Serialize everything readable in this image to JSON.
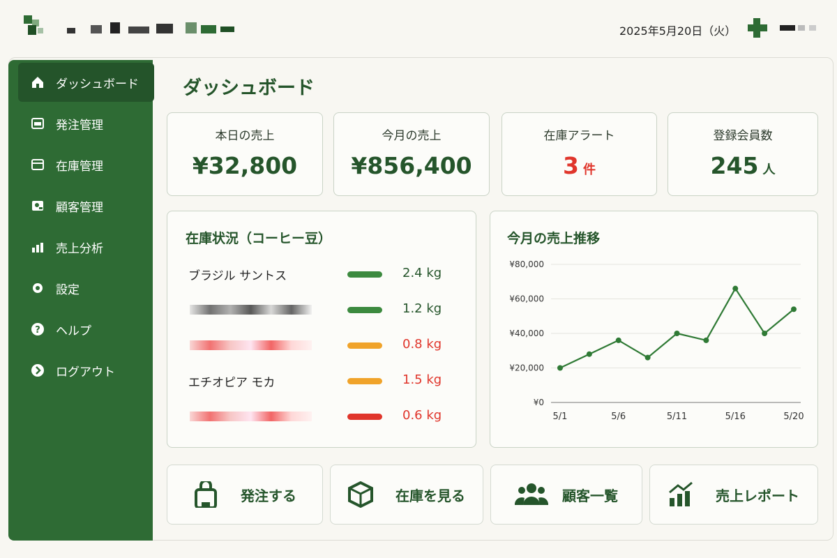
{
  "header": {
    "date": "2025年5月20日（火）"
  },
  "sidebar": {
    "items": [
      {
        "label": "ダッシュボード",
        "active": true
      },
      {
        "label": "発注管理"
      },
      {
        "label": "在庫管理"
      },
      {
        "label": "顧客管理"
      },
      {
        "label": "売上分析"
      },
      {
        "label": "設定"
      },
      {
        "label": "ヘルプ"
      },
      {
        "label": "ログアウト"
      }
    ]
  },
  "page_title": "ダッシュボード",
  "kpis": [
    {
      "label": "本日の売上",
      "value": "¥32,800"
    },
    {
      "label": "今月の売上",
      "value": "¥856,400"
    },
    {
      "label": "在庫アラート",
      "value": "3",
      "unit": "件",
      "alert": true
    },
    {
      "label": "登録会員数",
      "value": "245",
      "unit": "人"
    }
  ],
  "inventory": {
    "title": "在庫状況（コーヒー豆）",
    "rows": [
      {
        "name": "ブラジル サントス",
        "amount": "2.4 kg",
        "status": "ok"
      },
      {
        "amount": "1.2 kg",
        "status": "ok"
      },
      {
        "amount": "0.8 kg",
        "status": "warn"
      },
      {
        "name": "エチオピア モカ",
        "amount": "1.5 kg",
        "status": "warn"
      },
      {
        "amount": "0.6 kg",
        "status": "low"
      }
    ]
  },
  "chart_data": {
    "type": "line",
    "title": "今月の売上推移",
    "categories": [
      "5/1",
      null,
      "5/6",
      null,
      "5/11",
      null,
      "5/16",
      null,
      "5/20"
    ],
    "values": [
      20000,
      28000,
      36000,
      26000,
      40000,
      36000,
      66000,
      40000,
      54000
    ],
    "color": "#2f7a35",
    "ylim": [
      0,
      80000
    ],
    "yticks": [
      {
        "value": 0,
        "label": "¥0"
      },
      {
        "value": 20000,
        "label": "¥20,000"
      },
      {
        "value": 40000,
        "label": "¥40,000"
      },
      {
        "value": 60000,
        "label": "¥60,000"
      },
      {
        "value": 80000,
        "label": "¥80,000"
      }
    ],
    "grid": true
  },
  "actions": [
    {
      "label": "発注する"
    },
    {
      "label": "在庫を見る"
    },
    {
      "label": "顧客一覧"
    },
    {
      "label": "売上レポート"
    }
  ]
}
